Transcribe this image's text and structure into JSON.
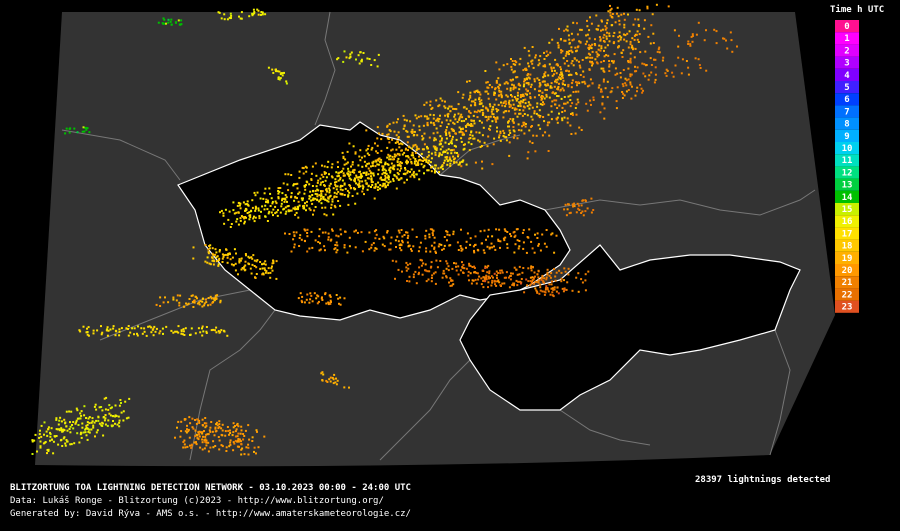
{
  "legend": {
    "title": "Time h UTC",
    "items": [
      {
        "label": "0",
        "color": "#ff1090"
      },
      {
        "label": "1",
        "color": "#ff00ff"
      },
      {
        "label": "2",
        "color": "#e000ff"
      },
      {
        "label": "3",
        "color": "#b000ff"
      },
      {
        "label": "4",
        "color": "#8000ff"
      },
      {
        "label": "5",
        "color": "#4020ff"
      },
      {
        "label": "6",
        "color": "#0040ff"
      },
      {
        "label": "7",
        "color": "#0070ff"
      },
      {
        "label": "8",
        "color": "#0090ff"
      },
      {
        "label": "9",
        "color": "#00b0ff"
      },
      {
        "label": "10",
        "color": "#00d0f0"
      },
      {
        "label": "11",
        "color": "#00e0c0"
      },
      {
        "label": "12",
        "color": "#00e080"
      },
      {
        "label": "13",
        "color": "#00d040"
      },
      {
        "label": "14",
        "color": "#00c000"
      },
      {
        "label": "15",
        "color": "#c8f000"
      },
      {
        "label": "16",
        "color": "#f0f000"
      },
      {
        "label": "17",
        "color": "#ffe000"
      },
      {
        "label": "18",
        "color": "#ffc800"
      },
      {
        "label": "19",
        "color": "#ffb000"
      },
      {
        "label": "20",
        "color": "#ff9800"
      },
      {
        "label": "21",
        "color": "#f08000"
      },
      {
        "label": "22",
        "color": "#e87000"
      },
      {
        "label": "23",
        "color": "#e05020"
      }
    ]
  },
  "footer": {
    "title": "BLITZORTUNG TOA LIGHTNING DETECTION NETWORK - 03.10.2023  00:00 - 24:00 UTC",
    "data_line": "Data: Lukáš Ronge - Blitzortung (c)2023  -  http://www.blitzortung.org/",
    "generated_line": "Generated by: David Rýva - AMS o.s.  -  http://www.amaterskameteorologie.cz/",
    "count": "28397 lightnings detected"
  }
}
